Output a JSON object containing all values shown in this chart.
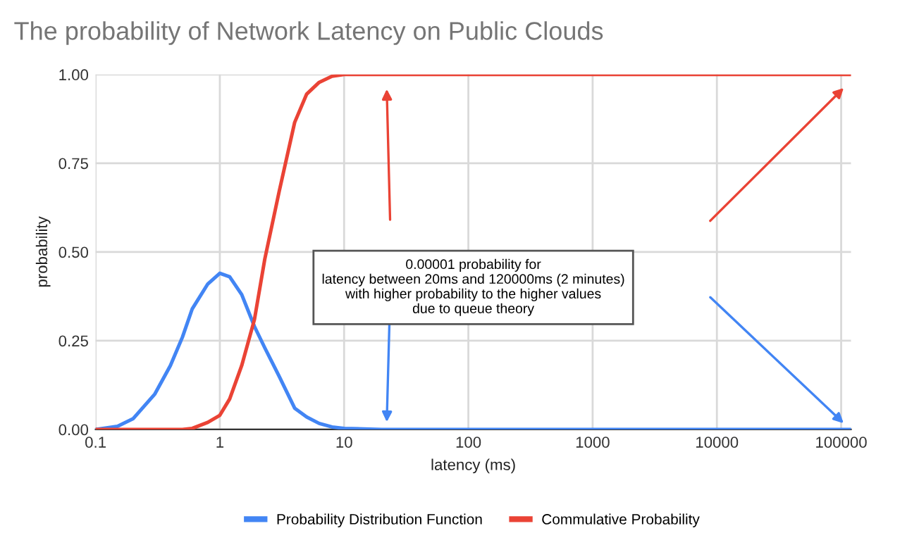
{
  "chart_data": {
    "type": "line",
    "title": "The probability of Network Latency on Public Clouds",
    "xlabel": "latency (ms)",
    "ylabel": "probability",
    "x": [
      0.1,
      0.15,
      0.2,
      0.3,
      0.4,
      0.5,
      0.6,
      0.8,
      1,
      1.2,
      1.5,
      1.9,
      2.3,
      3,
      4,
      5,
      6.3,
      8,
      10,
      20,
      100,
      1000,
      10000,
      100000,
      120000
    ],
    "series": [
      {
        "name": "Probability Distribution Function",
        "color": "#4285f4",
        "values": [
          0,
          0.009,
          0.03,
          0.1,
          0.18,
          0.26,
          0.34,
          0.41,
          0.44,
          0.43,
          0.38,
          0.29,
          0.23,
          0.15,
          0.06,
          0.035,
          0.017,
          0.007,
          0.003,
          0,
          0,
          0,
          0,
          0,
          0
        ]
      },
      {
        "name": "Commulative Probability",
        "color": "#ea4335",
        "values": [
          0,
          0,
          0,
          0,
          0,
          0,
          0.003,
          0.02,
          0.04,
          0.086,
          0.18,
          0.31,
          0.48,
          0.67,
          0.865,
          0.945,
          0.978,
          0.995,
          1,
          1,
          1,
          1,
          1,
          1,
          1
        ]
      }
    ],
    "log": "x",
    "xlim": [
      0.1,
      120000
    ],
    "xticks": [
      0.1,
      1,
      10,
      100,
      1000,
      10000,
      100000
    ],
    "ylim": [
      0,
      1
    ],
    "yticks": [
      {
        "value": 0,
        "label": "0.00"
      },
      {
        "value": 0.25,
        "label": "0.25"
      },
      {
        "value": 0.5,
        "label": "0.50"
      },
      {
        "value": 0.75,
        "label": "0.75"
      },
      {
        "value": 1,
        "label": "1.00"
      }
    ],
    "grid": true,
    "legend": "bottom",
    "marker": "none",
    "line_style": "solid",
    "annotations": [
      "0.00001 probability for\nlatency between 20ms and 120000ms (2 minutes)\nwith higher probability to the higher values\ndue to queue theory"
    ]
  }
}
